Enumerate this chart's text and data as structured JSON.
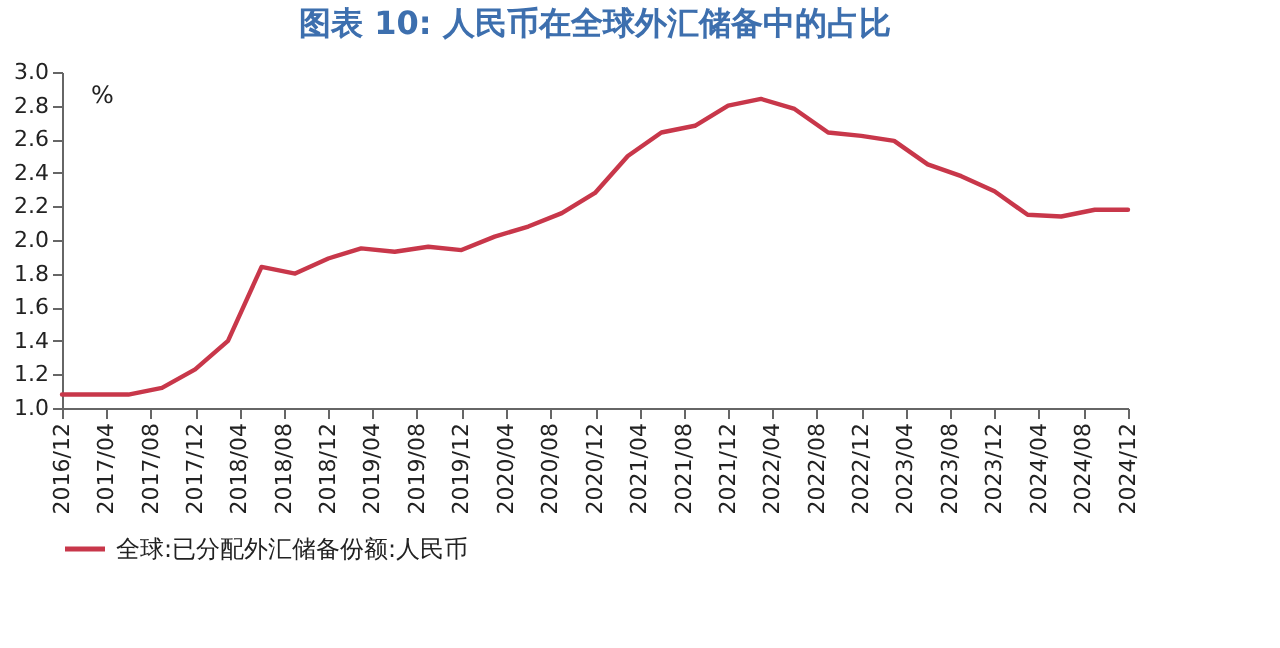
{
  "chart_data": {
    "type": "line",
    "title": "图表 10: 人民币在全球外汇储备中的占比",
    "ylabel": "%",
    "x": [
      "2016-12",
      "2017-03",
      "2017-06",
      "2017-09",
      "2017-12",
      "2018-03",
      "2018-06",
      "2018-09",
      "2018-12",
      "2019-03",
      "2019-06",
      "2019-09",
      "2019-12",
      "2020-03",
      "2020-06",
      "2020-09",
      "2020-12",
      "2021-03",
      "2021-06",
      "2021-09",
      "2021-12",
      "2022-03",
      "2022-06",
      "2022-09",
      "2022-12",
      "2023-03",
      "2023-06",
      "2023-09",
      "2023-12",
      "2024-03",
      "2024-06",
      "2024-09",
      "2024-12"
    ],
    "series": [
      {
        "name": "全球:已分配外汇储备份额:人民币",
        "color": "#c8374a",
        "values": [
          1.08,
          1.08,
          1.08,
          1.12,
          1.23,
          1.4,
          1.84,
          1.8,
          1.89,
          1.95,
          1.93,
          1.96,
          1.94,
          2.02,
          2.08,
          2.16,
          2.28,
          2.5,
          2.64,
          2.68,
          2.8,
          2.84,
          2.78,
          2.64,
          2.62,
          2.59,
          2.45,
          2.38,
          2.29,
          2.15,
          2.14,
          2.18,
          2.18
        ]
      }
    ],
    "xlim": [
      "2016-12",
      "2024-12"
    ],
    "xticks": [
      {
        "value": "2016-12",
        "label": "2016/12"
      },
      {
        "value": "2017-04",
        "label": "2017/04"
      },
      {
        "value": "2017-08",
        "label": "2017/08"
      },
      {
        "value": "2017-12",
        "label": "2017/12"
      },
      {
        "value": "2018-04",
        "label": "2018/04"
      },
      {
        "value": "2018-08",
        "label": "2018/08"
      },
      {
        "value": "2018-12",
        "label": "2018/12"
      },
      {
        "value": "2019-04",
        "label": "2019/04"
      },
      {
        "value": "2019-08",
        "label": "2019/08"
      },
      {
        "value": "2019-12",
        "label": "2019/12"
      },
      {
        "value": "2020-04",
        "label": "2020/04"
      },
      {
        "value": "2020-08",
        "label": "2020/08"
      },
      {
        "value": "2020-12",
        "label": "2020/12"
      },
      {
        "value": "2021-04",
        "label": "2021/04"
      },
      {
        "value": "2021-08",
        "label": "2021/08"
      },
      {
        "value": "2021-12",
        "label": "2021/12"
      },
      {
        "value": "2022-04",
        "label": "2022/04"
      },
      {
        "value": "2022-08",
        "label": "2022/08"
      },
      {
        "value": "2022-12",
        "label": "2022/12"
      },
      {
        "value": "2023-04",
        "label": "2023/04"
      },
      {
        "value": "2023-08",
        "label": "2023/08"
      },
      {
        "value": "2023-12",
        "label": "2023/12"
      },
      {
        "value": "2024-04",
        "label": "2024/04"
      },
      {
        "value": "2024-08",
        "label": "2024/08"
      },
      {
        "value": "2024-12",
        "label": "2024/12"
      }
    ],
    "ylim": [
      1.0,
      3.0
    ],
    "yticks": [
      {
        "value": 1.0,
        "label": "1.0"
      },
      {
        "value": 1.2,
        "label": "1.2"
      },
      {
        "value": 1.4,
        "label": "1.4"
      },
      {
        "value": 1.6,
        "label": "1.6"
      },
      {
        "value": 1.8,
        "label": "1.8"
      },
      {
        "value": 2.0,
        "label": "2.0"
      },
      {
        "value": 2.2,
        "label": "2.2"
      },
      {
        "value": 2.4,
        "label": "2.4"
      },
      {
        "value": 2.6,
        "label": "2.6"
      },
      {
        "value": 2.8,
        "label": "2.8"
      },
      {
        "value": 3.0,
        "label": "3.0"
      }
    ],
    "legend": "bottom",
    "line_style": "solid"
  }
}
